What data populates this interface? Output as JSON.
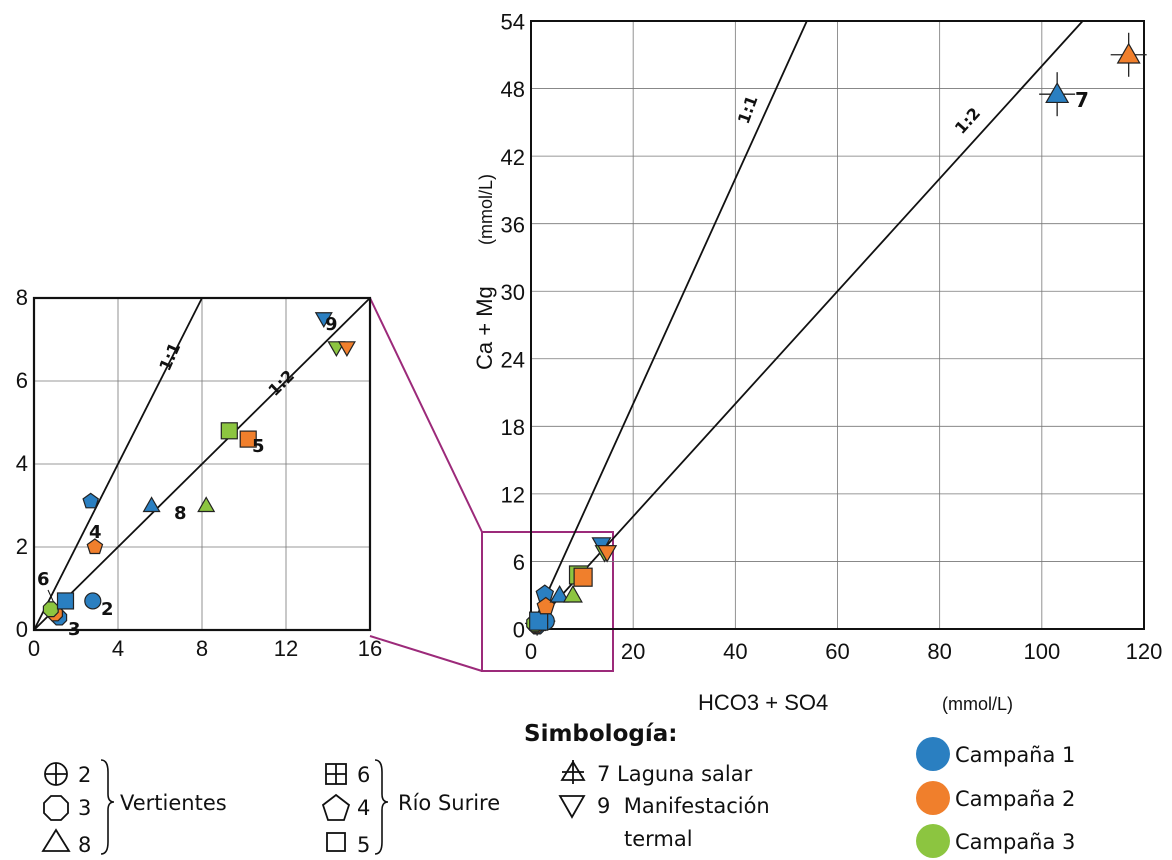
{
  "chart_data": [
    {
      "type": "scatter",
      "name": "main",
      "xlabel": "HCO3 + SO4",
      "xunit": "(mmol/L)",
      "ylabel": "Ca + Mg",
      "yunit": "(mmol/L)",
      "xlim": [
        0,
        120
      ],
      "ylim": [
        0,
        54
      ],
      "xticks": [
        0,
        20,
        40,
        60,
        80,
        100,
        120
      ],
      "yticks": [
        0,
        6,
        12,
        18,
        24,
        30,
        36,
        42,
        48,
        54
      ],
      "grid": true,
      "ref_lines": [
        {
          "label": "1:1",
          "slope": 1
        },
        {
          "label": "1:2",
          "slope": 0.5
        }
      ],
      "points": [
        {
          "id": "2",
          "campaign": 1,
          "x": 2.8,
          "y": 0.7
        },
        {
          "id": "3",
          "campaign": 1,
          "x": 1.2,
          "y": 0.3
        },
        {
          "id": "3",
          "campaign": 2,
          "x": 1.0,
          "y": 0.4
        },
        {
          "id": "3",
          "campaign": 3,
          "x": 0.8,
          "y": 0.5
        },
        {
          "id": "6",
          "campaign": 1,
          "x": 1.5,
          "y": 0.7
        },
        {
          "id": "4",
          "campaign": 1,
          "x": 2.7,
          "y": 3.1
        },
        {
          "id": "4",
          "campaign": 2,
          "x": 2.9,
          "y": 2.0
        },
        {
          "id": "8",
          "campaign": 1,
          "x": 5.6,
          "y": 3.0
        },
        {
          "id": "8",
          "campaign": 3,
          "x": 8.2,
          "y": 3.0
        },
        {
          "id": "5",
          "campaign": 3,
          "x": 9.3,
          "y": 4.8
        },
        {
          "id": "5",
          "campaign": 2,
          "x": 10.2,
          "y": 4.6
        },
        {
          "id": "9",
          "campaign": 1,
          "x": 13.8,
          "y": 7.5
        },
        {
          "id": "9",
          "campaign": 3,
          "x": 14.4,
          "y": 6.8
        },
        {
          "id": "9",
          "campaign": 2,
          "x": 14.9,
          "y": 6.8
        },
        {
          "id": "7",
          "campaign": 1,
          "x": 103,
          "y": 47.5
        },
        {
          "id": "7",
          "campaign": 2,
          "x": 117,
          "y": 51
        }
      ],
      "point_labels": [
        "7"
      ]
    },
    {
      "type": "scatter",
      "name": "inset",
      "xlim": [
        0,
        16
      ],
      "ylim": [
        0,
        8
      ],
      "xticks": [
        0,
        4,
        8,
        12,
        16
      ],
      "yticks": [
        0,
        2,
        4,
        6,
        8
      ],
      "grid": true,
      "ref_lines": [
        {
          "label": "1:1",
          "slope": 1
        },
        {
          "label": "1:2",
          "slope": 0.5
        }
      ],
      "point_labels": [
        "2",
        "3",
        "4",
        "5",
        "6",
        "8",
        "9"
      ]
    }
  ],
  "legend": {
    "title": "Simbología:",
    "groups": [
      {
        "label": "Vertientes",
        "items": [
          {
            "symbol": "circle-plus",
            "id": "2"
          },
          {
            "symbol": "octagon",
            "id": "3"
          },
          {
            "symbol": "triangle",
            "id": "8"
          }
        ]
      },
      {
        "label": "Río Surire",
        "items": [
          {
            "symbol": "square-plus",
            "id": "6"
          },
          {
            "symbol": "pentagon",
            "id": "4"
          },
          {
            "symbol": "square",
            "id": "5"
          }
        ]
      }
    ],
    "singles": [
      {
        "symbol": "triangle-plus",
        "text": "7 Laguna salar"
      },
      {
        "symbol": "triangle-down",
        "text": "9  Manifestación",
        "text2": "termal"
      }
    ],
    "campaigns": [
      {
        "label": "Campaña 1",
        "color": "#2a7fc1"
      },
      {
        "label": "Campaña 2",
        "color": "#f07f2c"
      },
      {
        "label": "Campaña 3",
        "color": "#8cc540"
      }
    ]
  },
  "colors": {
    "zoom_box": "#9c2a7a"
  }
}
